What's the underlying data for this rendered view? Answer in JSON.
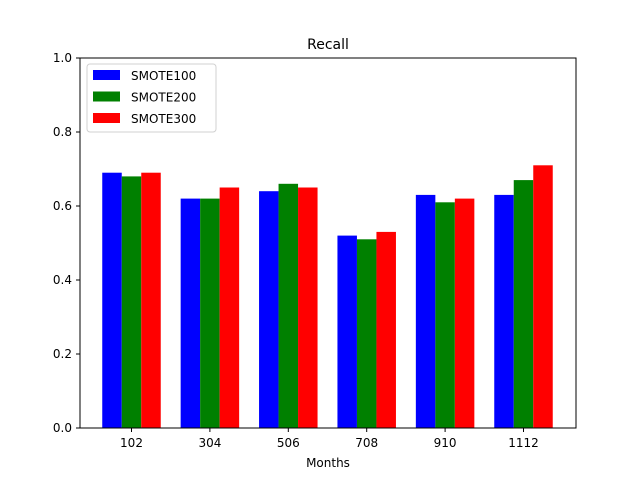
{
  "chart_data": {
    "type": "bar",
    "title": "Recall",
    "xlabel": "Months",
    "ylabel": "",
    "ylim": [
      0,
      1.0
    ],
    "yticks": [
      "0.0",
      "0.2",
      "0.4",
      "0.6",
      "0.8",
      "1.0"
    ],
    "categories": [
      "102",
      "304",
      "506",
      "708",
      "910",
      "1112"
    ],
    "grid": false,
    "legend_position": "top-left",
    "series": [
      {
        "name": "SMOTE100",
        "color": "#0000ff",
        "values": [
          0.69,
          0.62,
          0.64,
          0.52,
          0.63,
          0.63
        ]
      },
      {
        "name": "SMOTE200",
        "color": "#008000",
        "values": [
          0.68,
          0.62,
          0.66,
          0.51,
          0.61,
          0.67
        ]
      },
      {
        "name": "SMOTE300",
        "color": "#ff0000",
        "values": [
          0.69,
          0.65,
          0.65,
          0.53,
          0.62,
          0.71
        ]
      }
    ]
  }
}
